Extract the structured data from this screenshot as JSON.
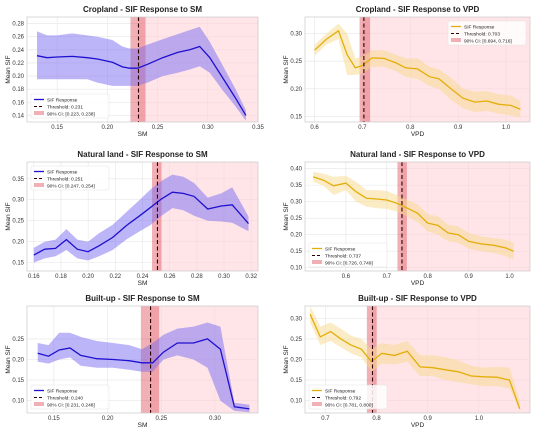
{
  "chart_data": [
    {
      "type": "line",
      "title": "Cropland - SIF Response to SM",
      "xlabel": "SM",
      "ylabel": "Mean SIF",
      "xlim": [
        0.12,
        0.35
      ],
      "ylim": [
        0.13,
        0.29
      ],
      "xticks": [
        0.15,
        0.2,
        0.25,
        0.3,
        0.35
      ],
      "yticks": [
        0.14,
        0.16,
        0.18,
        0.2,
        0.22,
        0.24,
        0.26,
        0.28
      ],
      "xtick_labels": [
        "0.15",
        "0.20",
        "0.25",
        "0.30",
        "0.35"
      ],
      "ytick_labels": [
        "0.14",
        "0.16",
        "0.18",
        "0.20",
        "0.22",
        "0.24",
        "0.26",
        "0.28"
      ],
      "line_color": "#1f10d0",
      "band_color": "#7a6cf0",
      "threshold": 0.231,
      "ci": [
        0.223,
        0.238
      ],
      "legend": [
        "SIF Response",
        "Threshold: 0.231",
        "90% CI: [0.223, 0.238]"
      ],
      "legend_loc": "lower-left",
      "x": [
        0.13,
        0.14,
        0.15,
        0.165,
        0.18,
        0.19,
        0.205,
        0.215,
        0.222,
        0.23,
        0.24,
        0.255,
        0.27,
        0.282,
        0.292,
        0.302,
        0.315,
        0.327,
        0.338
      ],
      "y": [
        0.231,
        0.228,
        0.229,
        0.23,
        0.228,
        0.226,
        0.221,
        0.214,
        0.212,
        0.212,
        0.218,
        0.228,
        0.236,
        0.24,
        0.245,
        0.228,
        0.197,
        0.168,
        0.14
      ],
      "lower": [
        0.195,
        0.195,
        0.195,
        0.195,
        0.195,
        0.19,
        0.185,
        0.185,
        0.185,
        0.185,
        0.19,
        0.2,
        0.205,
        0.21,
        0.215,
        0.205,
        0.178,
        0.155,
        0.132
      ],
      "upper": [
        0.268,
        0.262,
        0.262,
        0.265,
        0.262,
        0.26,
        0.255,
        0.245,
        0.242,
        0.242,
        0.248,
        0.256,
        0.264,
        0.27,
        0.275,
        0.252,
        0.216,
        0.182,
        0.148
      ]
    },
    {
      "type": "line",
      "title": "Cropland - SIF Response to VPD",
      "xlabel": "VPD",
      "ylabel": "Mean SIF",
      "xlim": [
        0.58,
        1.05
      ],
      "ylim": [
        0.14,
        0.33
      ],
      "xticks": [
        0.6,
        0.7,
        0.8,
        0.9,
        1.0
      ],
      "yticks": [
        0.15,
        0.2,
        0.25,
        0.3
      ],
      "xtick_labels": [
        "0.6",
        "0.7",
        "0.8",
        "0.9",
        "1.0"
      ],
      "ytick_labels": [
        "0.15",
        "0.20",
        "0.25",
        "0.30"
      ],
      "line_color": "#e3ae0a",
      "band_color": "#f7d98b",
      "threshold": 0.703,
      "ci": [
        0.694,
        0.716
      ],
      "legend": [
        "SIF Response",
        "Threshold: 0.703",
        "90% CI: [0.694, 0.716]"
      ],
      "legend_loc": "upper-right",
      "x": [
        0.6,
        0.625,
        0.65,
        0.668,
        0.685,
        0.7,
        0.72,
        0.745,
        0.77,
        0.79,
        0.815,
        0.84,
        0.86,
        0.885,
        0.91,
        0.935,
        0.96,
        0.985,
        1.01,
        1.03
      ],
      "y": [
        0.27,
        0.29,
        0.305,
        0.262,
        0.238,
        0.242,
        0.256,
        0.255,
        0.247,
        0.238,
        0.236,
        0.222,
        0.218,
        0.2,
        0.183,
        0.176,
        0.178,
        0.172,
        0.17,
        0.163
      ],
      "lower": [
        0.26,
        0.28,
        0.29,
        0.225,
        0.225,
        0.228,
        0.24,
        0.24,
        0.232,
        0.222,
        0.218,
        0.205,
        0.2,
        0.18,
        0.165,
        0.158,
        0.16,
        0.155,
        0.152,
        0.148
      ],
      "upper": [
        0.28,
        0.3,
        0.318,
        0.3,
        0.255,
        0.258,
        0.27,
        0.27,
        0.262,
        0.255,
        0.255,
        0.24,
        0.235,
        0.22,
        0.2,
        0.195,
        0.196,
        0.19,
        0.188,
        0.178
      ]
    },
    {
      "type": "line",
      "title": "Natural land - SIF Response to SM",
      "xlabel": "SM",
      "ylabel": "Mean SIF",
      "xlim": [
        0.155,
        0.325
      ],
      "ylim": [
        0.13,
        0.39
      ],
      "xticks": [
        0.16,
        0.18,
        0.2,
        0.22,
        0.24,
        0.26,
        0.28,
        0.3,
        0.32
      ],
      "yticks": [
        0.15,
        0.2,
        0.25,
        0.3,
        0.35
      ],
      "xtick_labels": [
        "0.16",
        "0.18",
        "0.20",
        "0.22",
        "0.24",
        "0.26",
        "0.28",
        "0.30",
        "0.32"
      ],
      "ytick_labels": [
        "0.15",
        "0.20",
        "0.25",
        "0.30",
        "0.35"
      ],
      "line_color": "#1f10d0",
      "band_color": "#7a6cf0",
      "threshold": 0.251,
      "ci": [
        0.247,
        0.254
      ],
      "legend": [
        "SIF Response",
        "Threshold: 0.251",
        "90% CI: [0.247, 0.254]"
      ],
      "legend_loc": "upper-left",
      "x": [
        0.16,
        0.168,
        0.176,
        0.184,
        0.192,
        0.2,
        0.208,
        0.218,
        0.228,
        0.238,
        0.246,
        0.254,
        0.262,
        0.27,
        0.278,
        0.288,
        0.298,
        0.306,
        0.318
      ],
      "y": [
        0.168,
        0.182,
        0.184,
        0.205,
        0.182,
        0.176,
        0.19,
        0.21,
        0.238,
        0.262,
        0.282,
        0.302,
        0.318,
        0.315,
        0.308,
        0.278,
        0.285,
        0.288,
        0.243
      ],
      "lower": [
        0.15,
        0.16,
        0.165,
        0.18,
        0.16,
        0.155,
        0.165,
        0.18,
        0.205,
        0.225,
        0.24,
        0.262,
        0.28,
        0.275,
        0.262,
        0.25,
        0.248,
        0.245,
        0.225
      ],
      "upper": [
        0.185,
        0.2,
        0.205,
        0.23,
        0.205,
        0.2,
        0.22,
        0.24,
        0.27,
        0.3,
        0.325,
        0.345,
        0.36,
        0.355,
        0.34,
        0.305,
        0.315,
        0.33,
        0.26
      ]
    },
    {
      "type": "line",
      "title": "Natural land - SIF Response to VPD",
      "xlabel": "VPD",
      "ylabel": "Mean SIF",
      "xlim": [
        0.5,
        1.05
      ],
      "ylim": [
        0.09,
        0.42
      ],
      "xticks": [
        0.6,
        0.7,
        0.8,
        0.9,
        1.0
      ],
      "yticks": [
        0.1,
        0.15,
        0.2,
        0.25,
        0.3,
        0.35,
        0.4
      ],
      "xtick_labels": [
        "0.6",
        "0.7",
        "0.8",
        "0.9",
        "1.0"
      ],
      "ytick_labels": [
        "0.10",
        "0.15",
        "0.20",
        "0.25",
        "0.30",
        "0.35",
        "0.40"
      ],
      "line_color": "#e3ae0a",
      "band_color": "#f7d98b",
      "threshold": 0.737,
      "ci": [
        0.726,
        0.749
      ],
      "legend": [
        "SIF Response",
        "Threshold: 0.737",
        "90% CI: [0.726, 0.749]"
      ],
      "legend_loc": "lower-left",
      "x": [
        0.52,
        0.545,
        0.57,
        0.6,
        0.625,
        0.65,
        0.675,
        0.7,
        0.725,
        0.75,
        0.775,
        0.8,
        0.825,
        0.85,
        0.875,
        0.9,
        0.93,
        0.96,
        0.99,
        1.01
      ],
      "y": [
        0.375,
        0.365,
        0.348,
        0.356,
        0.33,
        0.31,
        0.308,
        0.305,
        0.295,
        0.28,
        0.265,
        0.235,
        0.228,
        0.205,
        0.2,
        0.18,
        0.172,
        0.168,
        0.16,
        0.15
      ],
      "lower": [
        0.36,
        0.348,
        0.32,
        0.335,
        0.3,
        0.285,
        0.28,
        0.278,
        0.27,
        0.255,
        0.238,
        0.21,
        0.2,
        0.18,
        0.175,
        0.158,
        0.15,
        0.145,
        0.135,
        0.125
      ],
      "upper": [
        0.39,
        0.385,
        0.375,
        0.378,
        0.36,
        0.335,
        0.335,
        0.332,
        0.32,
        0.305,
        0.292,
        0.262,
        0.255,
        0.23,
        0.225,
        0.205,
        0.195,
        0.19,
        0.185,
        0.175
      ]
    },
    {
      "type": "line",
      "title": "Built-up - SIF Response to SM",
      "xlabel": "SM",
      "ylabel": "Mean SIF",
      "xlim": [
        0.125,
        0.34
      ],
      "ylim": [
        0.07,
        0.33
      ],
      "xticks": [
        0.15,
        0.2,
        0.25,
        0.3
      ],
      "yticks": [
        0.1,
        0.15,
        0.2,
        0.25
      ],
      "xtick_labels": [
        "0.15",
        "0.20",
        "0.25",
        "0.30"
      ],
      "ytick_labels": [
        "0.10",
        "0.15",
        "0.20",
        "0.25"
      ],
      "line_color": "#1f10d0",
      "band_color": "#7a6cf0",
      "threshold": 0.24,
      "ci": [
        0.231,
        0.248
      ],
      "legend": [
        "SIF Response",
        "Threshold: 0.240",
        "90% CI: [0.231, 0.248]"
      ],
      "legend_loc": "lower-left",
      "x": [
        0.135,
        0.145,
        0.155,
        0.165,
        0.175,
        0.19,
        0.205,
        0.22,
        0.232,
        0.242,
        0.252,
        0.265,
        0.28,
        0.293,
        0.305,
        0.318,
        0.332
      ],
      "y": [
        0.215,
        0.208,
        0.223,
        0.228,
        0.21,
        0.202,
        0.2,
        0.197,
        0.192,
        0.192,
        0.218,
        0.24,
        0.24,
        0.25,
        0.225,
        0.085,
        0.08
      ],
      "lower": [
        0.195,
        0.19,
        0.2,
        0.205,
        0.185,
        0.18,
        0.18,
        0.175,
        0.17,
        0.17,
        0.2,
        0.21,
        0.2,
        0.18,
        0.1,
        0.075,
        0.072
      ],
      "upper": [
        0.24,
        0.235,
        0.265,
        0.265,
        0.255,
        0.245,
        0.24,
        0.235,
        0.225,
        0.24,
        0.26,
        0.275,
        0.28,
        0.29,
        0.28,
        0.095,
        0.09
      ]
    },
    {
      "type": "line",
      "title": "Built-up - SIF Response to VPD",
      "xlabel": "VPD",
      "ylabel": "Mean SIF",
      "xlim": [
        0.66,
        1.1
      ],
      "ylim": [
        0.07,
        0.33
      ],
      "xticks": [
        0.7,
        0.8,
        0.9,
        1.0
      ],
      "yticks": [
        0.1,
        0.15,
        0.2,
        0.25,
        0.3
      ],
      "xtick_labels": [
        "0.7",
        "0.8",
        "0.9",
        "1.0"
      ],
      "ytick_labels": [
        "0.10",
        "0.15",
        "0.20",
        "0.25",
        "0.30"
      ],
      "line_color": "#e3ae0a",
      "band_color": "#f7d98b",
      "threshold": 0.792,
      "ci": [
        0.781,
        0.8
      ],
      "legend": [
        "SIF Response",
        "Threshold: 0.792",
        "90% CI: [0.781, 0.800]"
      ],
      "legend_loc": "lower-left",
      "x": [
        0.67,
        0.69,
        0.71,
        0.73,
        0.75,
        0.77,
        0.79,
        0.81,
        0.835,
        0.86,
        0.885,
        0.91,
        0.935,
        0.96,
        0.985,
        1.01,
        1.035,
        1.06,
        1.08
      ],
      "y": [
        0.31,
        0.255,
        0.268,
        0.25,
        0.235,
        0.225,
        0.195,
        0.215,
        0.21,
        0.22,
        0.182,
        0.18,
        0.175,
        0.17,
        0.16,
        0.158,
        0.157,
        0.15,
        0.08
      ],
      "lower": [
        0.29,
        0.235,
        0.245,
        0.23,
        0.215,
        0.205,
        0.17,
        0.19,
        0.188,
        0.195,
        0.16,
        0.16,
        0.15,
        0.145,
        0.14,
        0.135,
        0.135,
        0.13,
        0.075
      ],
      "upper": [
        0.33,
        0.28,
        0.29,
        0.275,
        0.258,
        0.25,
        0.225,
        0.24,
        0.235,
        0.245,
        0.21,
        0.21,
        0.205,
        0.198,
        0.185,
        0.18,
        0.182,
        0.18,
        0.1
      ]
    }
  ]
}
